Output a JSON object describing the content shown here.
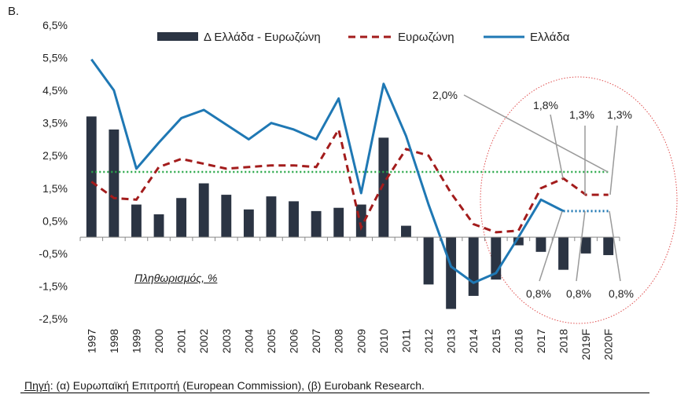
{
  "panel_label": "B.",
  "inner_label": "Πληθωρισμός, %",
  "source": {
    "label": "Πηγή",
    "text": ": (α) Ευρωπαϊκή Επιτροπή (European Commission), (β) Eurobank Research."
  },
  "chart_data": {
    "type": "bar+line",
    "categories": [
      "1997",
      "1998",
      "1999",
      "2000",
      "2001",
      "2002",
      "2003",
      "2004",
      "2005",
      "2006",
      "2007",
      "2008",
      "2009",
      "2010",
      "2011",
      "2012",
      "2013",
      "2014",
      "2015",
      "2016",
      "2017",
      "2018",
      "2019F",
      "2020F"
    ],
    "ylim": [
      -2.5,
      6.5
    ],
    "yticks": [
      6.5,
      5.5,
      4.5,
      3.5,
      2.5,
      1.5,
      0.5,
      -0.5,
      -1.5,
      -2.5
    ],
    "ytick_labels": [
      "6,5%",
      "5,5%",
      "4,5%",
      "3,5%",
      "2,5%",
      "1,5%",
      "0,5%",
      "-0,5%",
      "-1,5%",
      "-2,5%"
    ],
    "series": [
      {
        "name": "Δ Ελλάδα - Ευρωζώνη",
        "type": "bar",
        "color": "#2b3443",
        "values": [
          3.7,
          3.3,
          1.0,
          0.7,
          1.2,
          1.65,
          1.3,
          0.85,
          1.25,
          1.1,
          0.8,
          0.9,
          1.0,
          3.05,
          0.35,
          -1.45,
          -2.2,
          -1.8,
          -1.3,
          -0.25,
          -0.45,
          -1.0,
          -0.5,
          -0.55
        ]
      },
      {
        "name": "Ευρωζώνη",
        "type": "line",
        "style": "dashed",
        "color": "#a31c1c",
        "values": [
          1.7,
          1.2,
          1.15,
          2.15,
          2.4,
          2.25,
          2.1,
          2.15,
          2.2,
          2.2,
          2.15,
          3.3,
          0.3,
          1.65,
          2.7,
          2.5,
          1.35,
          0.4,
          0.15,
          0.2,
          1.5,
          1.8,
          1.3,
          1.3
        ]
      },
      {
        "name": "Ελλάδα",
        "type": "line",
        "color": "#1f78b4",
        "values": [
          5.45,
          4.5,
          2.1,
          2.9,
          3.65,
          3.9,
          3.45,
          3.0,
          3.5,
          3.3,
          3.0,
          4.25,
          1.35,
          4.7,
          3.1,
          1.0,
          -0.9,
          -1.4,
          -1.1,
          0.0,
          1.15,
          0.8,
          0.8,
          0.8
        ],
        "dotted_from_index": 21
      }
    ],
    "reference_line": {
      "value": 2.0,
      "color": "#2aa84a",
      "style": "dotted"
    },
    "annotations": [
      {
        "text": "2,0%",
        "points_to": "2020F",
        "value": 2.0
      },
      {
        "text": "1,8%",
        "points_to": "2018",
        "value": 1.8
      },
      {
        "text": "1,3%",
        "points_to": "2019F",
        "value": 1.3
      },
      {
        "text": "1,3%",
        "points_to": "2020F",
        "value": 1.3
      },
      {
        "text": "0,8%",
        "points_to": "2018",
        "value": 0.8
      },
      {
        "text": "0,8%",
        "points_to": "2019F",
        "value": 0.8
      },
      {
        "text": "0,8%",
        "points_to": "2020F",
        "value": 0.8
      }
    ],
    "highlight_ellipse": {
      "color": "#e05050",
      "style": "dotted"
    },
    "legend_position": "top"
  }
}
